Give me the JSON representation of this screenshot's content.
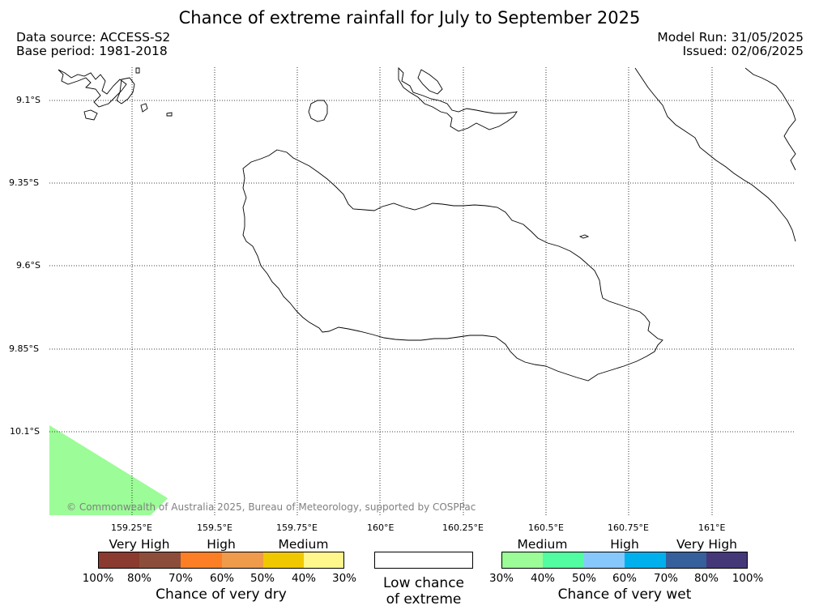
{
  "title": "Chance of extreme rainfall for July to September 2025",
  "data_source": "Data source: ACCESS-S2",
  "base_period": "Base period: 1981-2018",
  "model_run": "Model Run: 31/05/2025",
  "issued": "Issued: 02/06/2025",
  "copyright": "© Commonwealth of Australia 2025, Bureau of Meteorology, supported by COSPPac",
  "latitude_labels": [
    "9.1°S",
    "9.35°S",
    "9.6°S",
    "9.85°S",
    "10.1°S"
  ],
  "longitude_labels": [
    "159.25°E",
    "159.5°E",
    "159.75°E",
    "160°E",
    "160.25°E",
    "160.5°E",
    "160.75°E",
    "161°E"
  ],
  "dry_legend": {
    "title": "Chance of very dry",
    "groups": [
      "Very High",
      "High",
      "Medium"
    ],
    "ticks": [
      "100%",
      "80%",
      "70%",
      "60%",
      "50%",
      "40%",
      "30%"
    ],
    "colors": [
      "#8b3a30",
      "#8c4e3a",
      "#fc7f26",
      "#ef9b4b",
      "#f0c800",
      "#fff78b"
    ]
  },
  "low_legend": {
    "line1": "Low chance",
    "line2": "of extreme"
  },
  "wet_legend": {
    "title": "Chance of very wet",
    "groups": [
      "Medium",
      "High",
      "Very High"
    ],
    "ticks": [
      "30%",
      "40%",
      "50%",
      "60%",
      "70%",
      "80%",
      "100%"
    ],
    "colors": [
      "#9cfc98",
      "#52fca0",
      "#86c8fc",
      "#00b0ec",
      "#36609c",
      "#443878"
    ]
  },
  "map_overlay_color": "#9cfc98",
  "coastline_color": "#000000",
  "gridline_style": "dotted"
}
